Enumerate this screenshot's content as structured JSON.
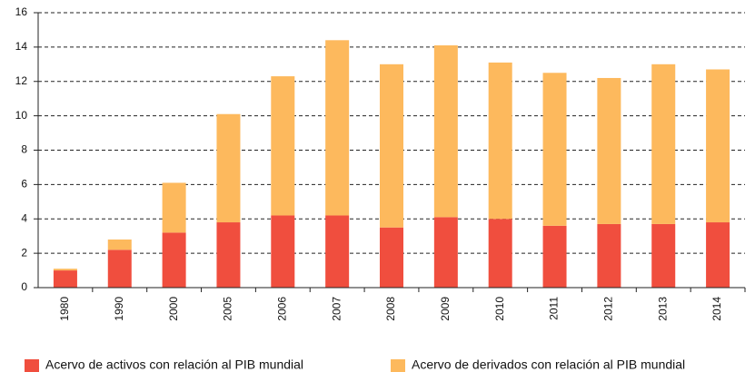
{
  "chart_data": {
    "type": "stacked_bar",
    "categories": [
      "1980",
      "1990",
      "2000",
      "2005",
      "2006",
      "2007",
      "2008",
      "2009",
      "2010",
      "2011",
      "2012",
      "2013",
      "2014"
    ],
    "series": [
      {
        "name": "Acervo de activos con relación al PIB mundial",
        "color": "#f04e3e",
        "values": [
          1.0,
          2.2,
          3.2,
          3.8,
          4.2,
          4.2,
          3.5,
          4.1,
          4.0,
          3.6,
          3.7,
          3.7,
          3.8
        ]
      },
      {
        "name": "Acervo de derivados con relación al PIB mundial",
        "color": "#fdb95d",
        "values": [
          0.1,
          0.6,
          2.9,
          6.3,
          8.1,
          10.2,
          9.5,
          10.0,
          9.1,
          8.9,
          8.5,
          9.3,
          8.9
        ]
      }
    ],
    "ylim": [
      0,
      16
    ],
    "yticks": [
      0,
      2,
      4,
      6,
      8,
      10,
      12,
      14,
      16
    ],
    "grid": true,
    "legend": "bottom"
  }
}
